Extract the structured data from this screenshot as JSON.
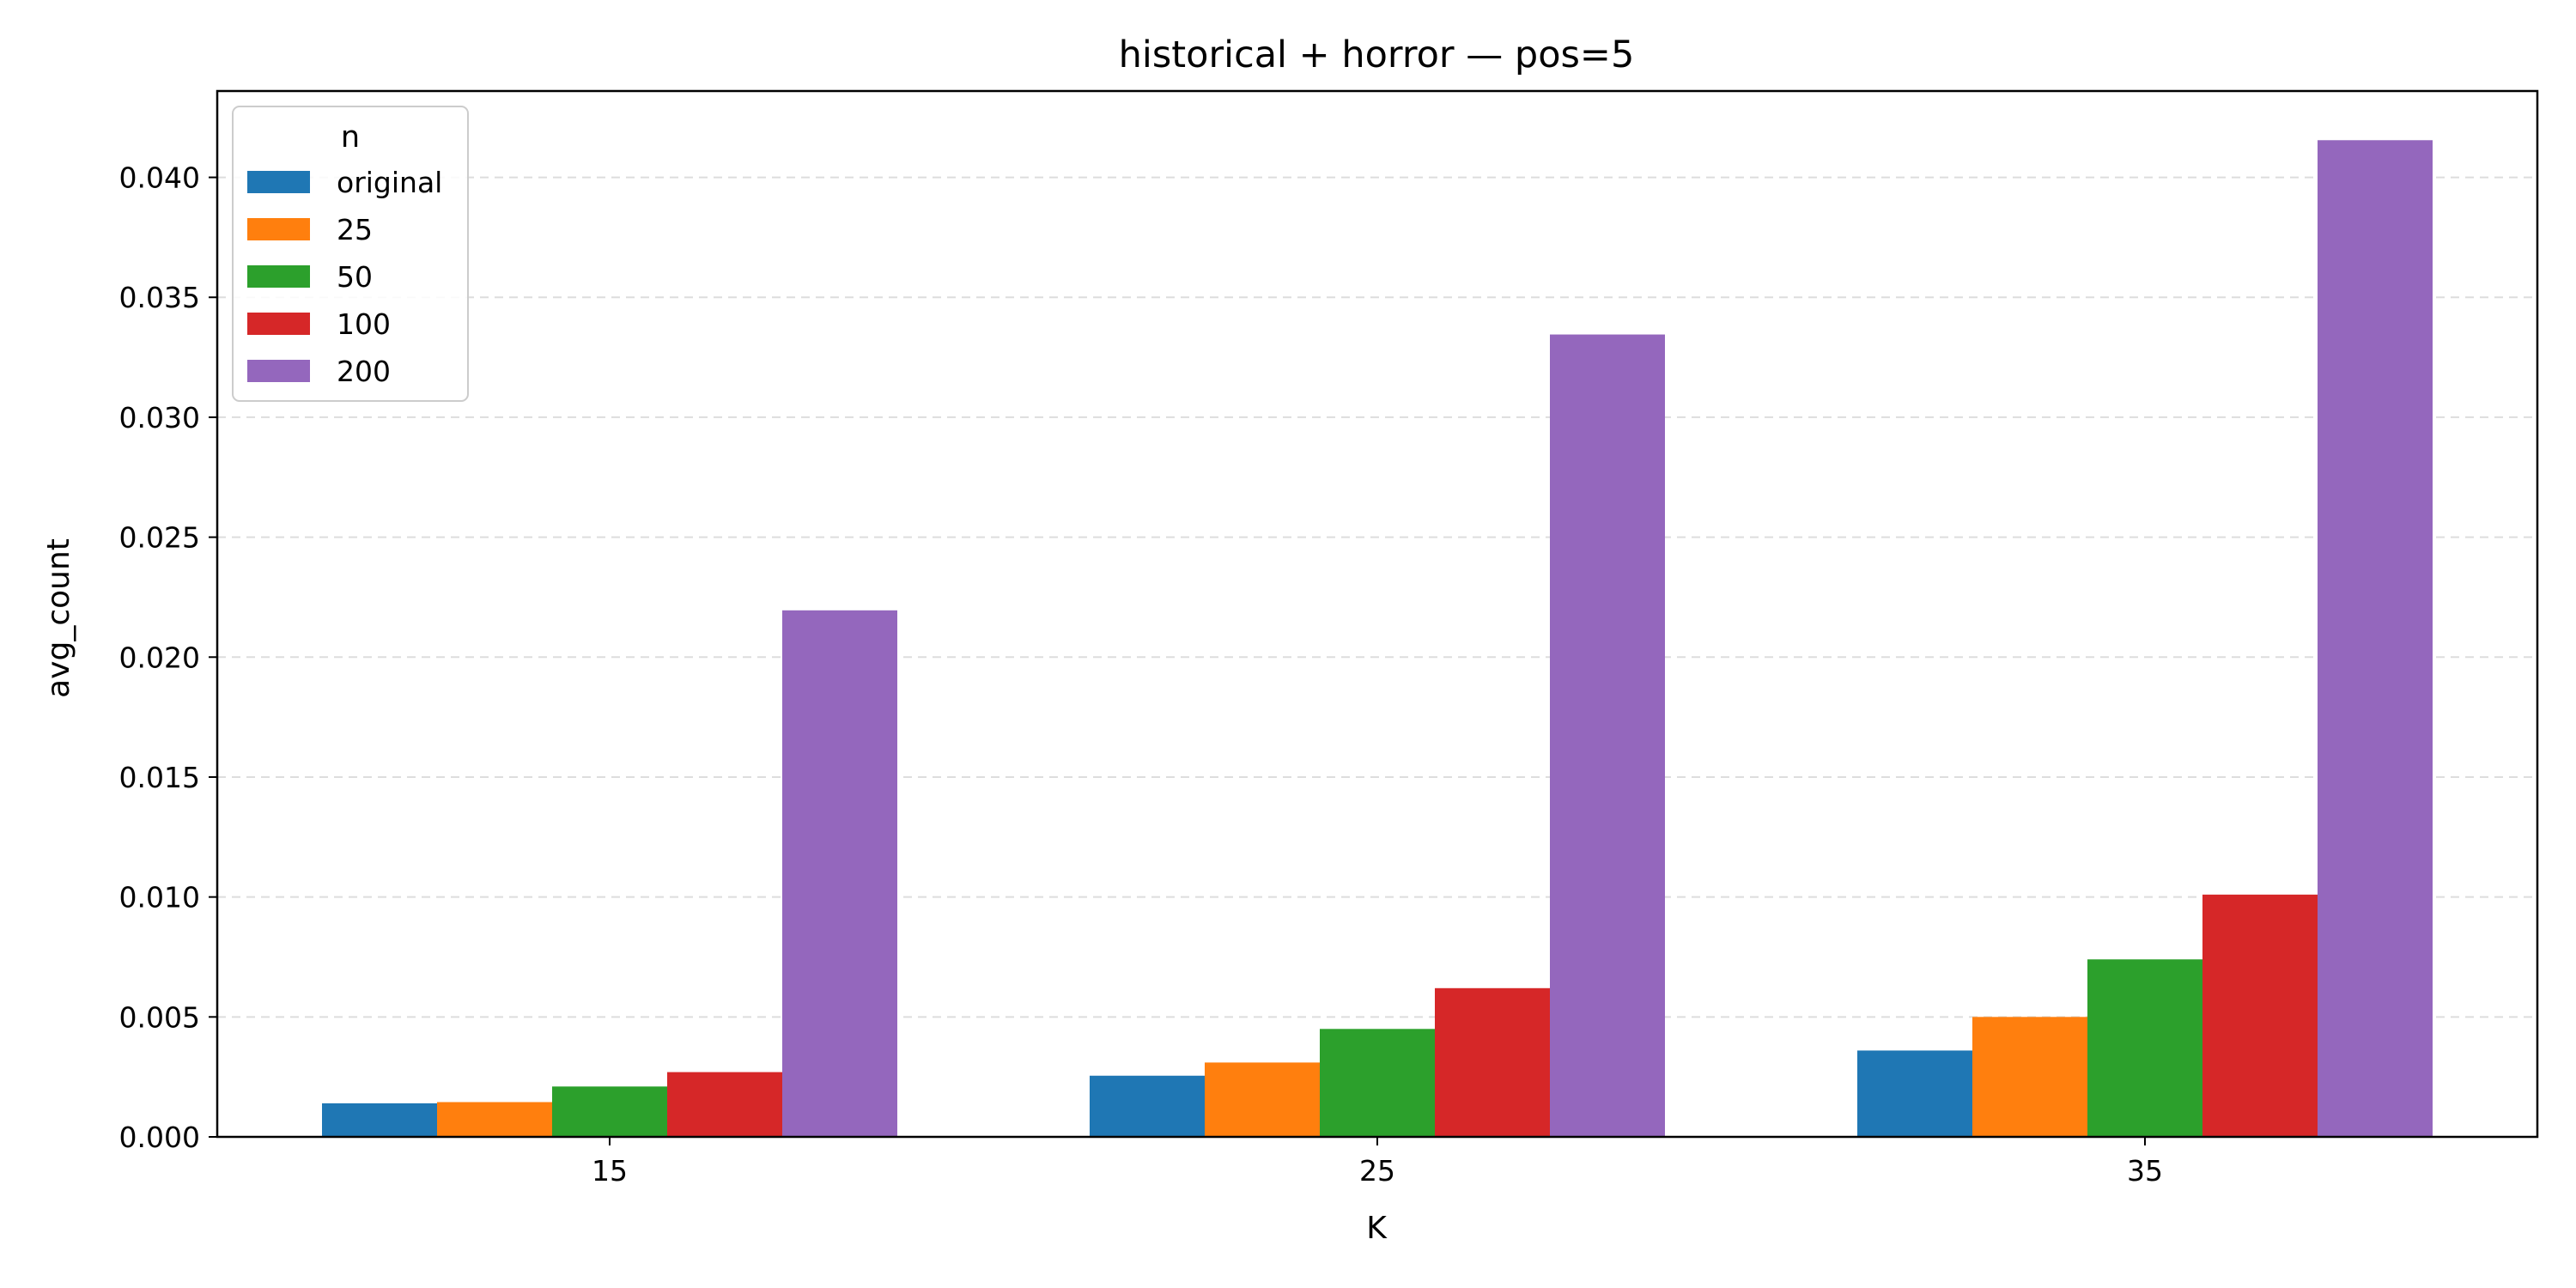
{
  "chart_data": {
    "type": "bar",
    "title": "historical + horror — pos=5",
    "xlabel": "K",
    "ylabel": "avg_count",
    "categories": [
      "15",
      "25",
      "35"
    ],
    "ylim": [
      0,
      0.0436
    ],
    "yticks": [
      "0.000",
      "0.005",
      "0.010",
      "0.015",
      "0.020",
      "0.025",
      "0.030",
      "0.035",
      "0.040"
    ],
    "grid": "horizontal dashed",
    "legend": {
      "title": "n",
      "placement": "top-left"
    },
    "series": [
      {
        "name": "original",
        "color": "#1f77b4",
        "values": [
          0.0014,
          0.00255,
          0.0036
        ]
      },
      {
        "name": "25",
        "color": "#ff7f0e",
        "values": [
          0.00145,
          0.0031,
          0.005
        ]
      },
      {
        "name": "50",
        "color": "#2ca02c",
        "values": [
          0.0021,
          0.0045,
          0.0074
        ]
      },
      {
        "name": "100",
        "color": "#d62728",
        "values": [
          0.0027,
          0.0062,
          0.0101
        ]
      },
      {
        "name": "200",
        "color": "#9467bd",
        "values": [
          0.02195,
          0.03345,
          0.04155
        ]
      }
    ]
  }
}
